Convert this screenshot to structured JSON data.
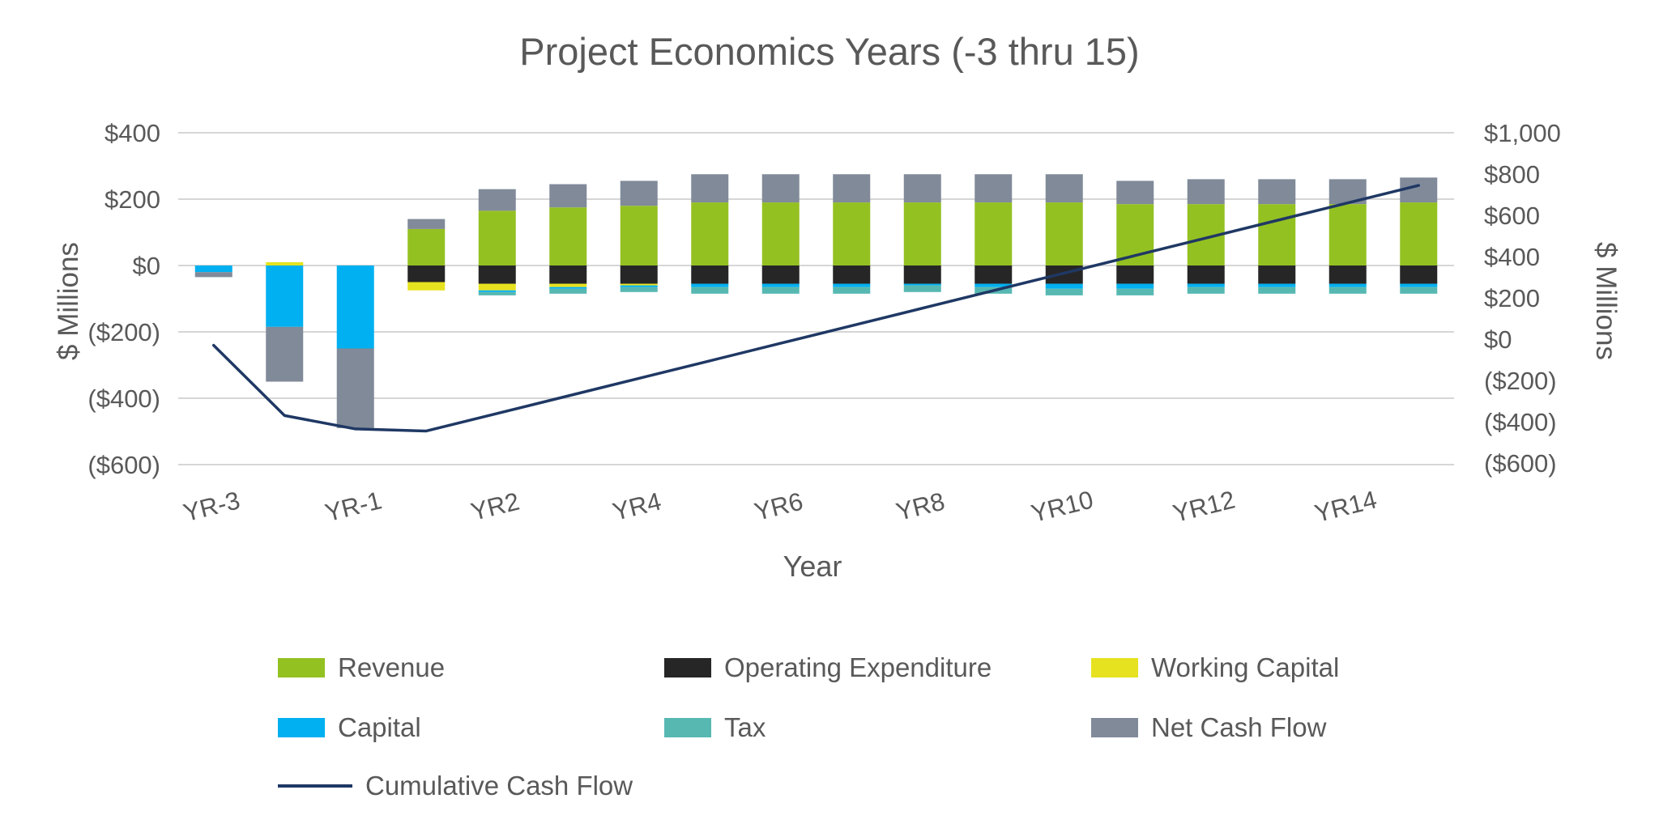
{
  "chart_data": {
    "type": "bar",
    "subtype": "stacked-bars-with-line-secondary-axis",
    "title": "Project Economics Years (-3 thru 15)",
    "xlabel": "Year",
    "ylabel_left": "$ Millions",
    "ylabel_right": "$ Millions",
    "grid": "horizontal-on",
    "legend_position": "bottom",
    "categories": [
      "YR-3",
      "YR-2",
      "YR-1",
      "YR1",
      "YR2",
      "YR3",
      "YR4",
      "YR5",
      "YR6",
      "YR7",
      "YR8",
      "YR9",
      "YR10",
      "YR11",
      "YR12",
      "YR13",
      "YR14",
      "YR15"
    ],
    "x_tick_labels": [
      "YR-3",
      "YR-1",
      "YR2",
      "YR4",
      "YR6",
      "YR8",
      "YR10",
      "YR12",
      "YR14"
    ],
    "left_axis": {
      "min": -600,
      "max": 400,
      "step": 200,
      "tick_labels": [
        "$400",
        "$200",
        "$0",
        "($200)",
        "($400)",
        "($600)"
      ]
    },
    "right_axis": {
      "min": -600,
      "max": 1000,
      "step": 200,
      "tick_labels": [
        "$1,000",
        "$800",
        "$600",
        "$400",
        "$200",
        "$0",
        "($200)",
        "($400)",
        "($600)"
      ]
    },
    "colors": {
      "gridline": "#d6d6d6",
      "axis_text": "#595959"
    },
    "series": [
      {
        "name": "Revenue",
        "color": "#94c122",
        "values": [
          0,
          0,
          0,
          110,
          165,
          175,
          180,
          190,
          190,
          190,
          190,
          190,
          190,
          185,
          185,
          185,
          185,
          190
        ]
      },
      {
        "name": "Operating Expenditure",
        "color": "#262626",
        "values": [
          0,
          0,
          0,
          -50,
          -55,
          -55,
          -55,
          -55,
          -55,
          -55,
          -55,
          -55,
          -55,
          -55,
          -55,
          -55,
          -55,
          -55
        ]
      },
      {
        "name": "Working Capital",
        "color": "#e6e21f",
        "values": [
          0,
          10,
          0,
          -25,
          -20,
          -10,
          -5,
          0,
          0,
          0,
          0,
          0,
          0,
          0,
          0,
          0,
          0,
          0
        ]
      },
      {
        "name": "Capital",
        "color": "#00b0f0",
        "values": [
          -20,
          -185,
          -250,
          0,
          -5,
          -5,
          -5,
          -10,
          -10,
          -10,
          -5,
          -10,
          -15,
          -15,
          -10,
          -10,
          -10,
          -10
        ]
      },
      {
        "name": "Tax",
        "color": "#57b8b2",
        "values": [
          0,
          0,
          0,
          0,
          -10,
          -15,
          -15,
          -20,
          -20,
          -20,
          -20,
          -20,
          -20,
          -20,
          -20,
          -20,
          -20,
          -20
        ]
      },
      {
        "name": "Net Cash Flow",
        "color": "#808a99",
        "values": [
          -15,
          -165,
          -240,
          30,
          65,
          70,
          75,
          85,
          85,
          85,
          85,
          85,
          85,
          70,
          75,
          75,
          75,
          75
        ]
      }
    ],
    "line_series": {
      "name": "Cumulative Cash Flow",
      "color": "#1f3864",
      "axis": "right",
      "values": [
        -30,
        -370,
        -435,
        -445,
        -360,
        -275,
        -190,
        -105,
        -20,
        65,
        150,
        235,
        320,
        405,
        490,
        575,
        660,
        745
      ]
    }
  }
}
